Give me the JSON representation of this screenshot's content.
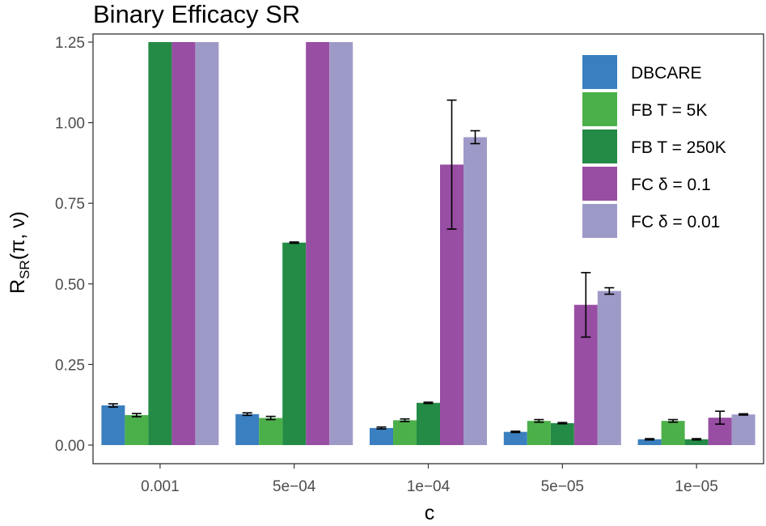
{
  "chart_data": {
    "type": "bar",
    "title": "Binary Efficacy SR",
    "xlabel": "c",
    "ylabel": "R",
    "ylabel_subscript": "SR",
    "ylabel_args": "(π, ν)",
    "ylim": [
      0,
      1.25
    ],
    "yticks": [
      0,
      0.25,
      0.5,
      0.75,
      1.0,
      1.25
    ],
    "ytick_labels": [
      "0.00",
      "0.25",
      "0.50",
      "0.75",
      "1.00",
      "1.25"
    ],
    "categories": [
      "0.001",
      "5e−04",
      "1e−04",
      "5e−05",
      "1e−05"
    ],
    "legend_position": "top-right",
    "series": [
      {
        "name": "DBCARE",
        "color": "#3a7fbf",
        "values": [
          0.123,
          0.096,
          0.053,
          0.041,
          0.018
        ],
        "errors": [
          0.005,
          0.004,
          0.003,
          0.002,
          0.002
        ]
      },
      {
        "name": "FB T = 5K",
        "color": "#4cb04a",
        "values": [
          0.093,
          0.084,
          0.077,
          0.075,
          0.075
        ],
        "errors": [
          0.005,
          0.005,
          0.004,
          0.004,
          0.004
        ]
      },
      {
        "name": "FB T = 250K",
        "color": "#238b45",
        "values": [
          1.25,
          0.628,
          0.131,
          0.068,
          0.018
        ],
        "errors": [
          0.002,
          0.002,
          0.002,
          0.002,
          0.002
        ]
      },
      {
        "name": "FC δ = 0.1",
        "color": "#984ea3",
        "values": [
          1.25,
          1.25,
          0.87,
          0.435,
          0.085
        ],
        "errors": [
          0,
          0,
          0.2,
          0.1,
          0.02
        ]
      },
      {
        "name": "FC δ = 0.01",
        "color": "#9e9ac8",
        "values": [
          1.25,
          1.25,
          0.955,
          0.478,
          0.095
        ],
        "errors": [
          0,
          0,
          0.02,
          0.01,
          0.002
        ]
      }
    ]
  }
}
